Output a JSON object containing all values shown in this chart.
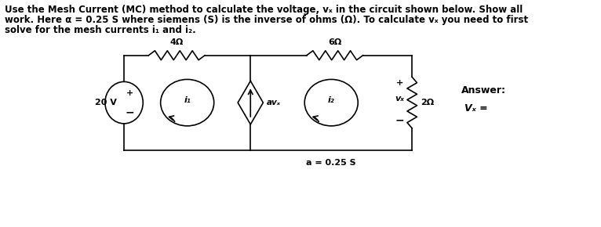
{
  "title_line1": "Use the Mesh Current (MC) method to calculate the voltage, vₓ in the circuit shown below. Show all",
  "title_line2": "work. Here α = 0.25 S where siemens (S) is the inverse of ohms (Ω). To calculate vₓ you need to first",
  "title_line3": "solve for the mesh currents i₁ and i₂.",
  "answer_label": "Answer:",
  "answer_value": "Vₓ =",
  "background": "#ffffff",
  "text_color": "#000000",
  "circuit_color": "#000000",
  "label_4ohm": "4Ω",
  "label_6ohm": "6Ω",
  "label_2ohm": "2Ω",
  "label_20v": "20 V",
  "label_i1": "i₁",
  "label_i2": "i₂",
  "label_avx": "avₓ",
  "label_vx": "vₓ",
  "label_a": "a = 0.25 S",
  "plus_sign": "+",
  "minus_sign": "−"
}
